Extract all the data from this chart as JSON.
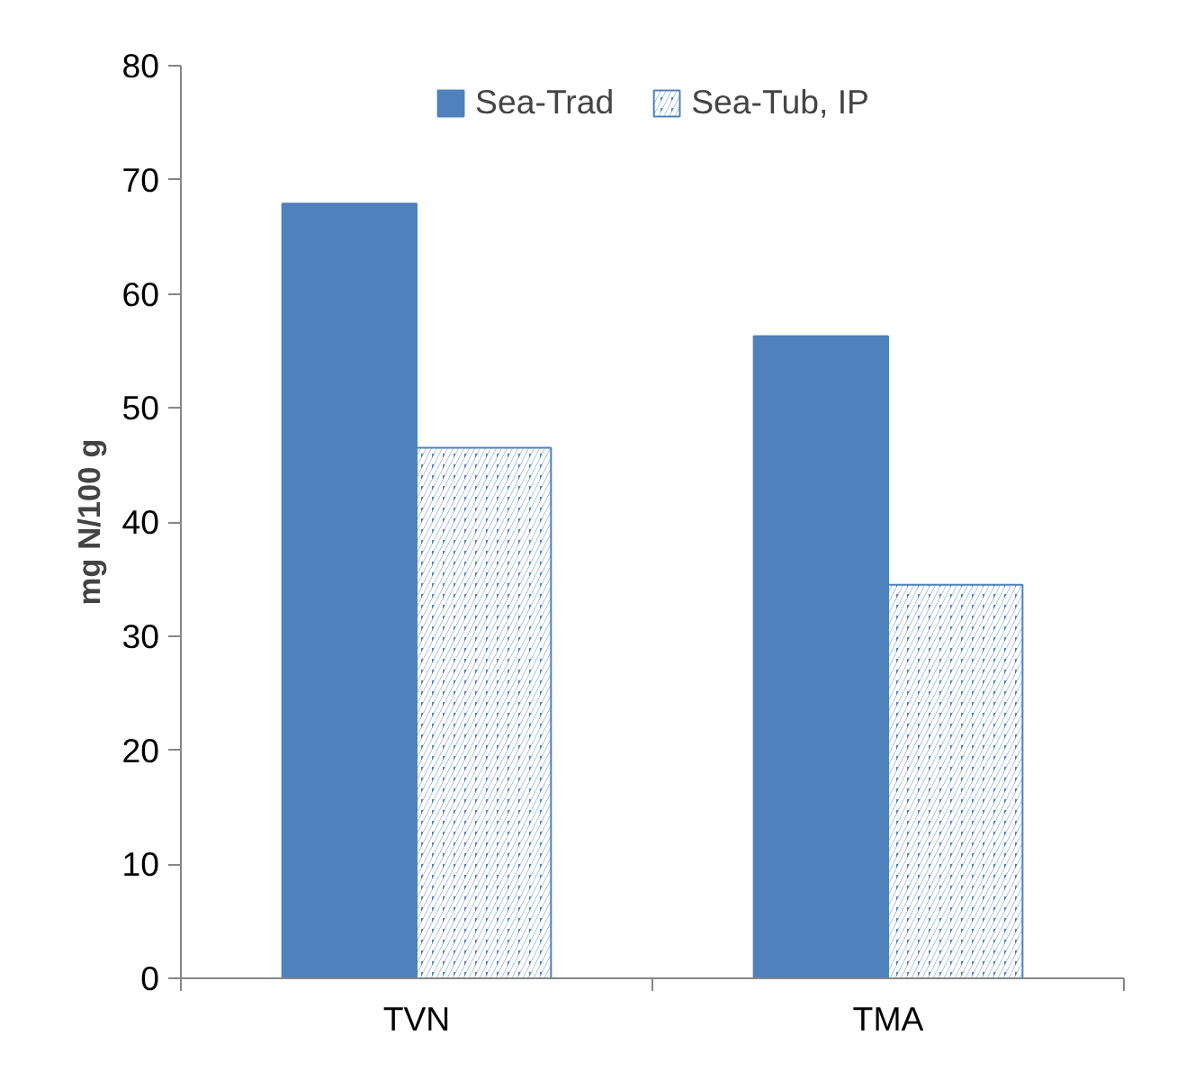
{
  "chart_data": {
    "type": "bar",
    "ylabel": "mg N/100 g",
    "categories": [
      "TVN",
      "TMA"
    ],
    "series": [
      {
        "name": "Sea-Trad",
        "color": "#4f81bd",
        "values": [
          67.9,
          56.3
        ]
      },
      {
        "name": "Sea-Tub, IP",
        "color": "#4f81bd",
        "values": [
          46.5,
          34.5
        ]
      }
    ],
    "ylim": [
      0,
      80
    ],
    "yticks": [
      0,
      10,
      20,
      30,
      40,
      50,
      60,
      70,
      80
    ],
    "grid": false,
    "legend": "top"
  }
}
